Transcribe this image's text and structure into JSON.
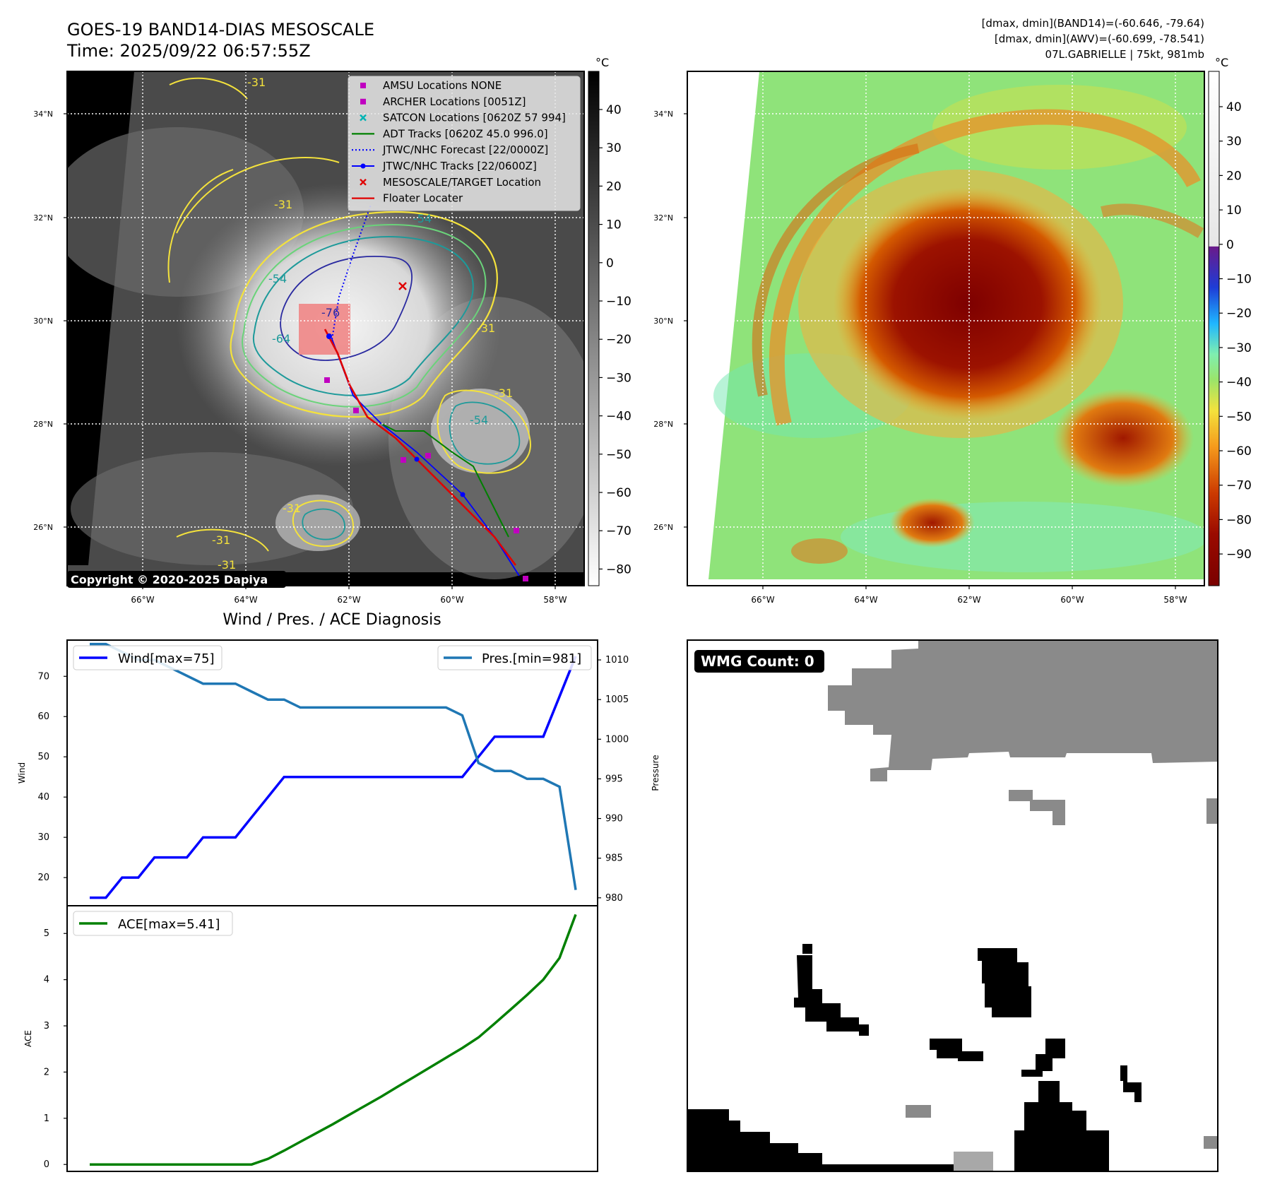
{
  "header": {
    "title": "GOES-19 BAND14-DIAS MESOSCALE",
    "time": "Time: 2025/09/22 06:57:55Z",
    "stats_band14": "[dmax, dmin](BAND14)=(-60.646, -79.64)",
    "stats_awv": "[dmax, dmin](AWV)=(-60.699, -78.541)",
    "storm": "07L.GABRIELLE | 75kt, 981mb"
  },
  "ir_panel": {
    "lat_labels": [
      "34°N",
      "32°N",
      "30°N",
      "28°N",
      "26°N"
    ],
    "lon_labels": [
      "66°W",
      "64°W",
      "62°W",
      "60°W",
      "58°W"
    ],
    "copyright": "Copyright © 2020-2025 Dapiya",
    "contour_labels": [
      "-31",
      "-31",
      "-54",
      "-54",
      "-64",
      "-76",
      "-31",
      "-54",
      "-31",
      "-31",
      "-31",
      "-31"
    ],
    "legend": [
      {
        "label": "AMSU Locations NONE",
        "marker": "square",
        "color": "#c000c0"
      },
      {
        "label": "ARCHER Locations [0051Z]",
        "marker": "square",
        "color": "#c000c0"
      },
      {
        "label": "SATCON Locations [0620Z 57 994]",
        "marker": "x",
        "color": "#00b4b4"
      },
      {
        "label": "ADT Tracks [0620Z 45.0 996.0]",
        "marker": "line",
        "color": "#008000"
      },
      {
        "label": "JTWC/NHC Forecast [22/0000Z]",
        "marker": "dotted",
        "color": "#0000ff"
      },
      {
        "label": "JTWC/NHC Tracks [22/0600Z]",
        "marker": "line-dot",
        "color": "#0000ff"
      },
      {
        "label": "MESOSCALE/TARGET Location",
        "marker": "x",
        "color": "#e00000"
      },
      {
        "label": "Floater Locater",
        "marker": "line",
        "color": "#e00000"
      }
    ]
  },
  "colorbar_ir": {
    "unit": "°C",
    "ticks": [
      "40",
      "30",
      "20",
      "10",
      "0",
      "−10",
      "−20",
      "−30",
      "−40",
      "−50",
      "−60",
      "−70",
      "−80"
    ]
  },
  "colorbar_awv": {
    "unit": "°C",
    "ticks": [
      "40",
      "30",
      "20",
      "10",
      "0",
      "−10",
      "−20",
      "−30",
      "−40",
      "−50",
      "−60",
      "−70",
      "−80",
      "−90"
    ]
  },
  "awv_panel": {
    "lat_labels": [
      "34°N",
      "32°N",
      "30°N",
      "28°N",
      "26°N"
    ],
    "lon_labels": [
      "66°W",
      "64°W",
      "62°W",
      "60°W",
      "58°W"
    ]
  },
  "diagnosis": {
    "title": "Wind / Pres. / ACE Diagnosis",
    "wind_label": "Wind",
    "pressure_label": "Pressure",
    "ace_label": "ACE",
    "wind_legend": "Wind[max=75]",
    "pres_legend": "Pres.[min=981]",
    "ace_legend": "ACE[max=5.41]",
    "wind_ticks": [
      "70",
      "60",
      "50",
      "40",
      "30",
      "20"
    ],
    "pres_ticks": [
      "1010",
      "1005",
      "1000",
      "995",
      "990",
      "985",
      "980"
    ],
    "ace_ticks": [
      "5",
      "4",
      "3",
      "2",
      "1",
      "0"
    ]
  },
  "wmg": {
    "label": "WMG Count: 0"
  },
  "chart_data": [
    {
      "type": "line",
      "title": "Wind / Pres. / ACE Diagnosis",
      "x": [
        0,
        1,
        2,
        3,
        4,
        5,
        6,
        7,
        8,
        9,
        10,
        11,
        12,
        13,
        14,
        15,
        16,
        17,
        18,
        19,
        20,
        21,
        22,
        23,
        24,
        25,
        26,
        27,
        28,
        29,
        30
      ],
      "ylabel": "Wind",
      "ylim": [
        13,
        79
      ],
      "series": [
        {
          "name": "Wind[max=75]",
          "axis": "left",
          "color": "#0000ff",
          "values": [
            15,
            15,
            20,
            20,
            25,
            25,
            25,
            30,
            30,
            30,
            35,
            40,
            45,
            45,
            45,
            45,
            45,
            45,
            45,
            45,
            45,
            45,
            45,
            45,
            50,
            55,
            55,
            55,
            55,
            65,
            75
          ]
        }
      ]
    },
    {
      "type": "line",
      "x": [
        0,
        1,
        2,
        3,
        4,
        5,
        6,
        7,
        8,
        9,
        10,
        11,
        12,
        13,
        14,
        15,
        16,
        17,
        18,
        19,
        20,
        21,
        22,
        23,
        24,
        25,
        26,
        27,
        28,
        29,
        30
      ],
      "ylabel": "Pressure",
      "ylim": [
        979,
        1012.5
      ],
      "series": [
        {
          "name": "Pres.[min=981]",
          "axis": "right",
          "color": "#1f77b4",
          "values": [
            1012,
            1012,
            1011,
            1010,
            1010,
            1009,
            1008,
            1007,
            1007,
            1007,
            1006,
            1005,
            1005,
            1004,
            1004,
            1004,
            1004,
            1004,
            1004,
            1004,
            1004,
            1004,
            1004,
            1003,
            997,
            996,
            996,
            995,
            995,
            994,
            981
          ]
        }
      ]
    },
    {
      "type": "line",
      "x": [
        0,
        1,
        2,
        3,
        4,
        5,
        6,
        7,
        8,
        9,
        10,
        11,
        12,
        13,
        14,
        15,
        16,
        17,
        18,
        19,
        20,
        21,
        22,
        23,
        24,
        25,
        26,
        27,
        28,
        29,
        30
      ],
      "ylabel": "ACE",
      "ylim": [
        -0.15,
        5.6
      ],
      "series": [
        {
          "name": "ACE[max=5.41]",
          "color": "#008000",
          "values": [
            0,
            0,
            0,
            0,
            0,
            0,
            0,
            0,
            0,
            0,
            0,
            0.12,
            0.3,
            0.49,
            0.68,
            0.87,
            1.07,
            1.27,
            1.47,
            1.68,
            1.89,
            2.1,
            2.31,
            2.52,
            2.75,
            3.05,
            3.36,
            3.67,
            4.0,
            4.47,
            5.41
          ]
        }
      ]
    }
  ]
}
